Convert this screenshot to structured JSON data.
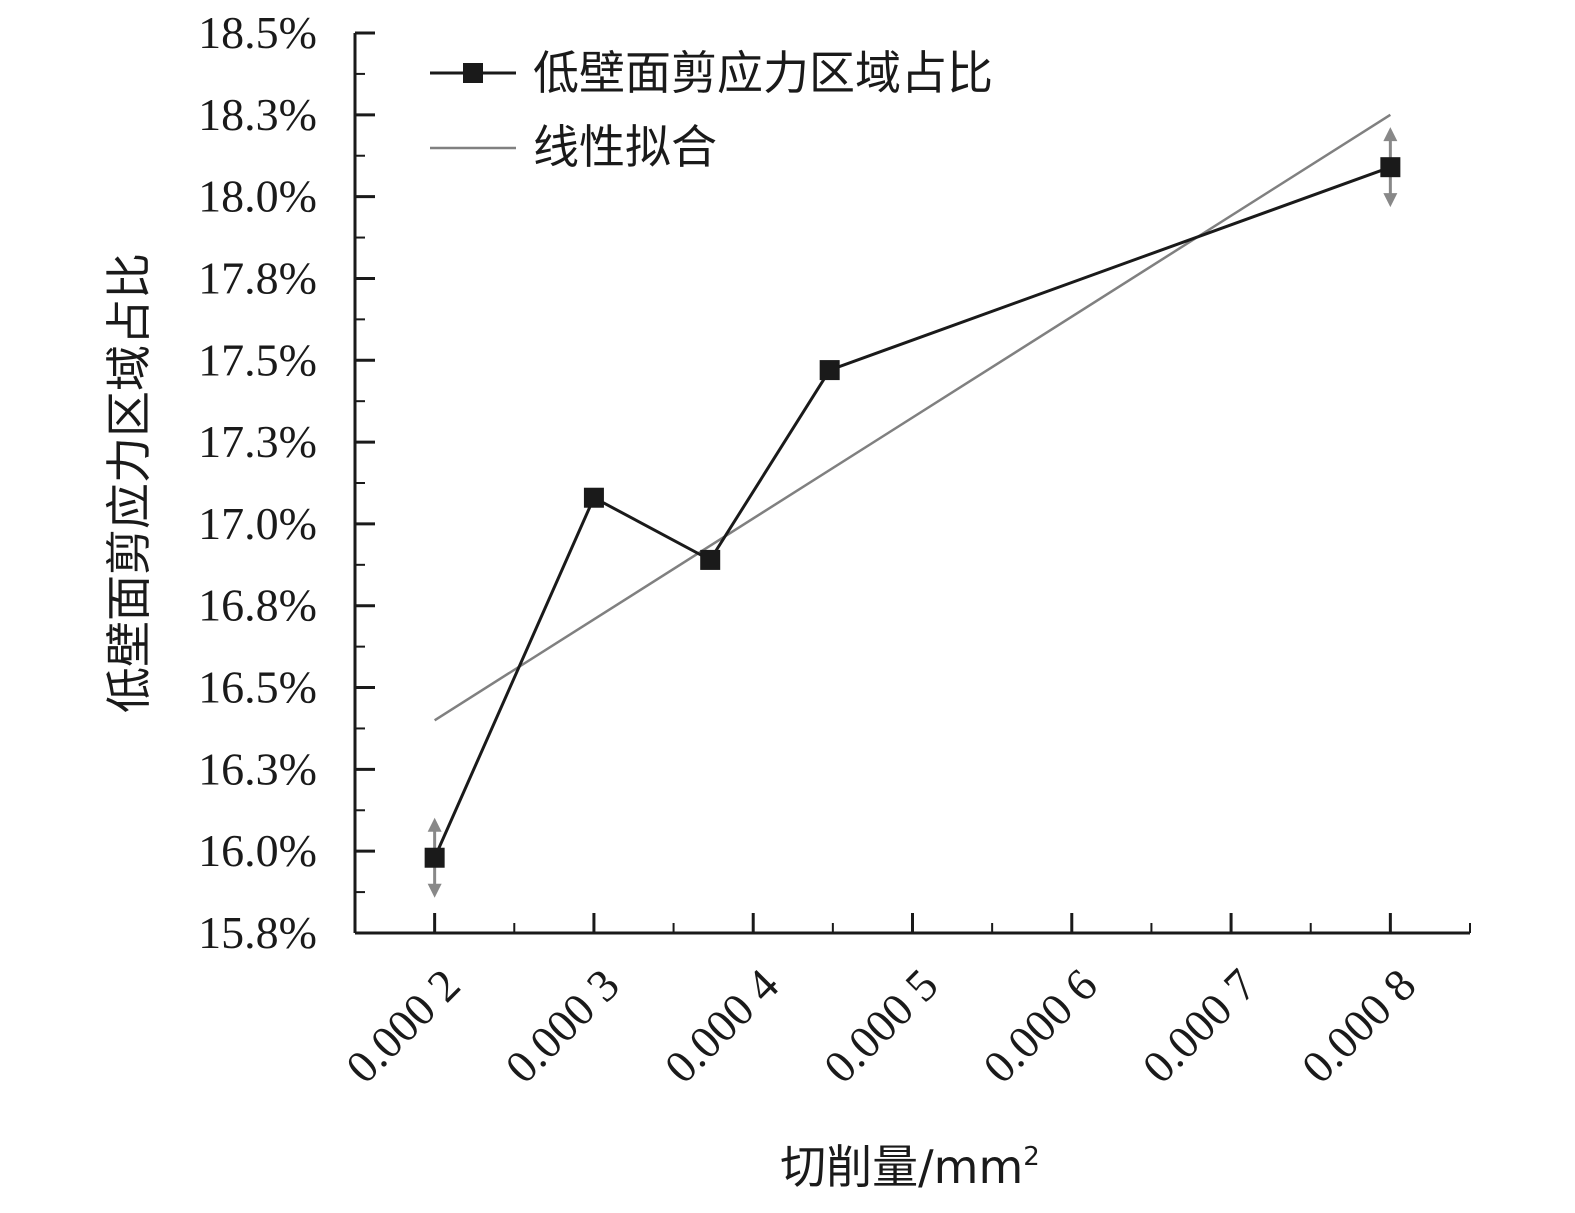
{
  "chart_data": {
    "type": "line",
    "title": "",
    "xlabel": "切削量/mm",
    "xlabel_sup": "2",
    "ylabel": "低壁面剪应力区域占比",
    "xlim": [
      0.00015,
      0.00085
    ],
    "ylim": [
      15.75,
      18.5
    ],
    "x_ticks": [
      0.0002,
      0.0003,
      0.0004,
      0.0005,
      0.0006,
      0.0007,
      0.0008
    ],
    "x_tick_labels": [
      "0.000 2",
      "0.000 3",
      "0.000 4",
      "0.000 5",
      "0.000 6",
      "0.000 7",
      "0.000 8"
    ],
    "y_ticks": [
      15.75,
      16.0,
      16.25,
      16.5,
      16.75,
      17.0,
      17.25,
      17.5,
      17.75,
      18.0,
      18.25,
      18.5
    ],
    "y_tick_labels": [
      "15.8%",
      "16.0%",
      "16.3%",
      "16.5%",
      "16.8%",
      "17.0%",
      "17.3%",
      "17.5%",
      "17.8%",
      "18.0%",
      "18.3%",
      "18.5%"
    ],
    "grid": false,
    "legend_position": "top-left",
    "series": [
      {
        "name": "低壁面剪应力区域占比",
        "marker": "square",
        "color": "#1a1a1a",
        "x": [
          0.0002,
          0.0003,
          0.000373,
          0.000448,
          0.0008
        ],
        "y": [
          15.98,
          17.08,
          16.89,
          17.47,
          18.09
        ]
      },
      {
        "name": "线性拟合",
        "marker": "none",
        "color": "#808080",
        "x": [
          0.0002,
          0.0008
        ],
        "y": [
          16.4,
          18.25
        ]
      }
    ],
    "error_markers": [
      {
        "x": 0.0002,
        "y": 15.98
      },
      {
        "x": 0.0008,
        "y": 18.09
      }
    ]
  }
}
